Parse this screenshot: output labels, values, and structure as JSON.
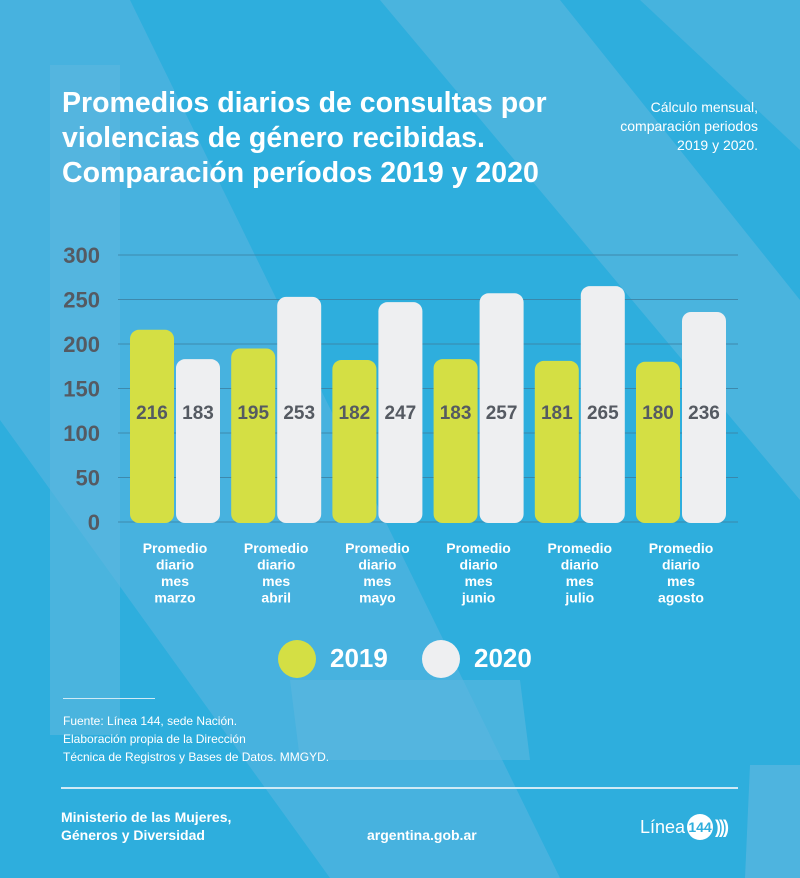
{
  "colors": {
    "background": "#2eaedd",
    "series_2019": "#d4df44",
    "series_2020": "#eeeff1",
    "value_text": "#555a62"
  },
  "header": {
    "title_lines": [
      "Promedios diarios de consultas por",
      "violencias de género recibidas.",
      "Comparación períodos 2019 y 2020"
    ],
    "subtitle_lines": [
      "Cálculo mensual,",
      "comparación periodos",
      "2019 y 2020."
    ]
  },
  "chart_data": {
    "type": "bar",
    "categories": [
      [
        "Promedio",
        "diario",
        "mes",
        "marzo"
      ],
      [
        "Promedio",
        "diario",
        "mes",
        "abril"
      ],
      [
        "Promedio",
        "diario",
        "mes",
        "mayo"
      ],
      [
        "Promedio",
        "diario",
        "mes",
        "junio"
      ],
      [
        "Promedio",
        "diario",
        "mes",
        "julio"
      ],
      [
        "Promedio",
        "diario",
        "mes",
        "agosto"
      ]
    ],
    "series": [
      {
        "name": "2019",
        "values": [
          216,
          195,
          182,
          183,
          181,
          180
        ]
      },
      {
        "name": "2020",
        "values": [
          183,
          253,
          247,
          257,
          265,
          236
        ]
      }
    ],
    "yticks": [
      "0",
      "50",
      "100",
      "150",
      "200",
      "250",
      "300"
    ],
    "ylim": [
      0,
      300
    ],
    "grid": true,
    "legend": "bottom"
  },
  "source_lines": [
    "Fuente: Línea 144, sede Nación.",
    "Elaboración propia de la Dirección",
    "Técnica de Registros y Bases de Datos. MMGYD."
  ],
  "footer": {
    "ministry_lines": [
      "Ministerio de las Mujeres,",
      "Géneros y Diversidad"
    ],
    "website": "argentina.gob.ar",
    "logo_text": "Línea",
    "logo_number": "144"
  }
}
